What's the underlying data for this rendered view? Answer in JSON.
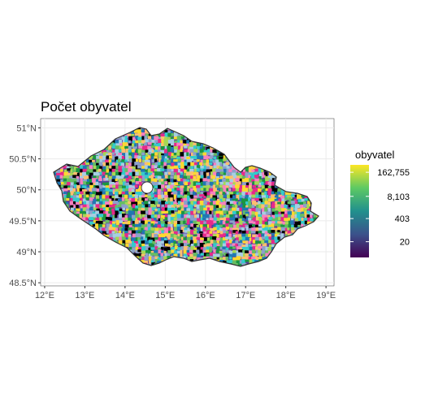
{
  "title": "Počet obyvatel",
  "map": {
    "type": "choropleth",
    "region_fill": "multicolor municipalities",
    "outline_color": "#333333",
    "panel_background": "#ffffff",
    "grid_color": "#ebebeb",
    "grid": true
  },
  "axes": {
    "x": {
      "range": [
        11.9,
        19.2
      ],
      "ticks": [
        {
          "value": 12,
          "label": "12°E"
        },
        {
          "value": 13,
          "label": "13°E"
        },
        {
          "value": 14,
          "label": "14°E"
        },
        {
          "value": 15,
          "label": "15°E"
        },
        {
          "value": 16,
          "label": "16°E"
        },
        {
          "value": 17,
          "label": "17°E"
        },
        {
          "value": 18,
          "label": "18°E"
        },
        {
          "value": 19,
          "label": "19°E"
        }
      ]
    },
    "y": {
      "range": [
        48.45,
        51.15
      ],
      "ticks": [
        {
          "value": 51,
          "label": "51°N"
        },
        {
          "value": 50.5,
          "label": "50.5°N"
        },
        {
          "value": 50,
          "label": "50°N"
        },
        {
          "value": 49.5,
          "label": "49.5°N"
        },
        {
          "value": 49,
          "label": "49°N"
        },
        {
          "value": 48.5,
          "label": "48.5°N"
        }
      ]
    }
  },
  "legend": {
    "title": "obyvatel",
    "scale": "log",
    "colors": [
      "#440154",
      "#3b528b",
      "#21908d",
      "#5dc963",
      "#fde725"
    ],
    "ticks": [
      "162,755",
      "8,103",
      "403",
      "20"
    ]
  },
  "palette": [
    "#e7298a",
    "#ffd92f",
    "#1f78b4",
    "#33cccc",
    "#66bd63",
    "#a6d854",
    "#000000",
    "#8da0cb",
    "#f781bf",
    "#1a9641",
    "#a6cee3",
    "#fdbf6f"
  ]
}
